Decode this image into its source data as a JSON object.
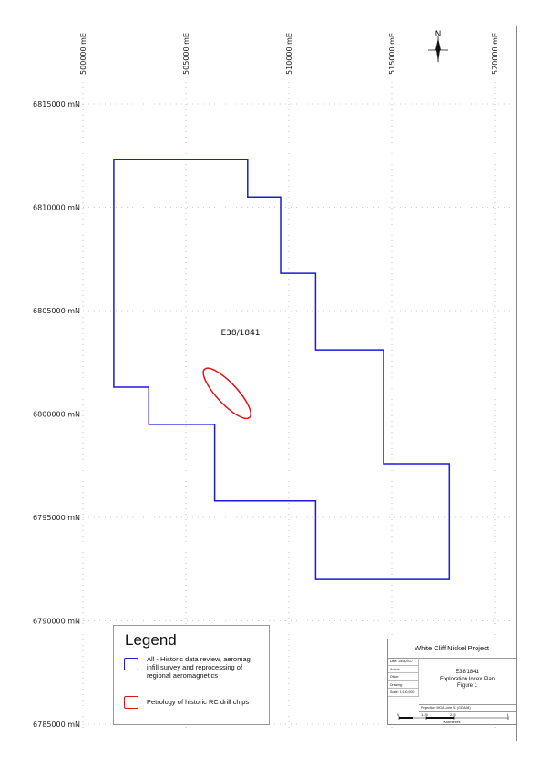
{
  "map": {
    "eastings": [
      {
        "label": "500000 mE",
        "value": 500000
      },
      {
        "label": "505000 mE",
        "value": 505000
      },
      {
        "label": "510000 mE",
        "value": 510000
      },
      {
        "label": "515000 mE",
        "value": 515000
      },
      {
        "label": "520000 mE",
        "value": 520000
      }
    ],
    "northings": [
      {
        "label": "6815000 mN",
        "value": 6815000
      },
      {
        "label": "6810000 mN",
        "value": 6810000
      },
      {
        "label": "6805000 mN",
        "value": 6805000
      },
      {
        "label": "6800000 mN",
        "value": 6800000
      },
      {
        "label": "6795000 mN",
        "value": 6795000
      },
      {
        "label": "6790000 mN",
        "value": 6790000
      },
      {
        "label": "6785000 mN",
        "value": 6785000
      }
    ],
    "north_arrow_label": "N",
    "tenement_label": "E38/1841",
    "tenement_color": "#1a1adb",
    "petrology_color": "#e01212",
    "tenement_boundary": [
      [
        501500,
        6812300
      ],
      [
        508000,
        6812300
      ],
      [
        508000,
        6810500
      ],
      [
        509600,
        6810500
      ],
      [
        509600,
        6806800
      ],
      [
        511300,
        6806800
      ],
      [
        511300,
        6803100
      ],
      [
        514600,
        6803100
      ],
      [
        514600,
        6797600
      ],
      [
        517800,
        6797600
      ],
      [
        517800,
        6792000
      ],
      [
        511300,
        6792000
      ],
      [
        511300,
        6795800
      ],
      [
        506400,
        6795800
      ],
      [
        506400,
        6799500
      ],
      [
        503200,
        6799500
      ],
      [
        503200,
        6801300
      ],
      [
        501500,
        6801300
      ]
    ],
    "petrology_area": {
      "center_e": 507000,
      "center_n": 6801000,
      "semi_major_m": 1600,
      "semi_minor_m": 500,
      "rotation_deg": 47
    }
  },
  "legend": {
    "title": "Legend",
    "items": [
      {
        "text": "All - Historic data review, aeromag infill survey and reprocessing of regional aeromagnetics",
        "color": "#1a1adb"
      },
      {
        "text": "Petrology of historic RC drill chips",
        "color": "#e01212"
      }
    ]
  },
  "titleblock": {
    "project": "White Cliff Nickel Project",
    "title_lines": [
      "E38/1841",
      "Exploration Index Plan",
      "Figure 1"
    ],
    "fields": [
      "Date: 25/8/2017",
      "Author:",
      "Office:",
      "Drawing:",
      "Scale: 1:150,000"
    ],
    "projection": "Projection: MGA Zone 51 (GDA 94)",
    "scale_ticks": [
      "0",
      "1.25",
      "2.5",
      "5"
    ],
    "scale_units": "Kilometres"
  }
}
